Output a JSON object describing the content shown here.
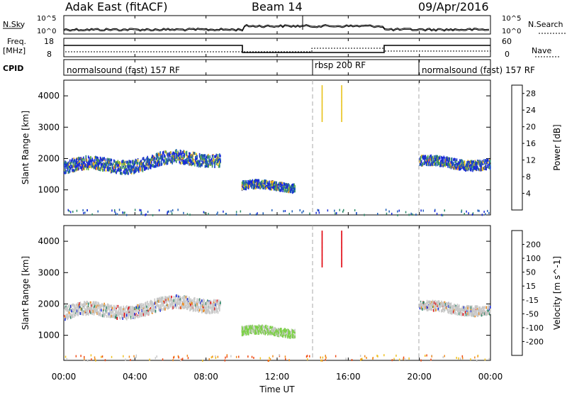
{
  "header": {
    "title": "Adak East (fitACF)",
    "beam": "Beam 14",
    "date": "09/Apr/2016"
  },
  "strip": {
    "nsky_label": "N.Sky",
    "nsearch_label": "N.Search",
    "count_ticks": [
      "10^5",
      "10^0"
    ],
    "freq_label": "Freq.",
    "freq_unit": "[MHz]",
    "freq_ticks": [
      "18",
      "8"
    ],
    "nave_label": "Nave",
    "nave_ticks": [
      "60",
      "0"
    ],
    "cpid_label": "CPID",
    "cpid_segments": [
      "normalsound (fast) 157 RF",
      "rbsp 200 RF",
      "normalsound (fast) 157 RF"
    ]
  },
  "chart_data": [
    {
      "type": "heatmap",
      "title": "",
      "xlabel": "Time UT",
      "ylabel": "Slant Range [km]",
      "xlim": [
        "00:00",
        "24:00"
      ],
      "x_ticks": [
        "00:00",
        "04:00",
        "08:00",
        "12:00",
        "16:00",
        "20:00",
        "00:00"
      ],
      "ylim": [
        200,
        4500
      ],
      "y_ticks": [
        1000,
        2000,
        3000,
        4000
      ],
      "colorbar": {
        "label": "Power [dB]",
        "ticks": [
          4,
          8,
          12,
          16,
          20,
          24,
          28
        ],
        "range": [
          0,
          30
        ],
        "colors": [
          "#1a2bd8",
          "#1f5fb8",
          "#2e8b6a",
          "#5fae4a",
          "#e8c21a",
          "#f08a1a",
          "#ee3a12",
          "#d8000a"
        ]
      },
      "scatter_regions": [
        {
          "name": "",
          "x": [
            0.0,
            8.8
          ],
          "y": [
            1500,
            2300
          ]
        },
        {
          "name": "",
          "x": [
            10.0,
            13.0
          ],
          "y": [
            900,
            1400
          ]
        },
        {
          "name": "",
          "x": [
            20.0,
            24.0
          ],
          "y": [
            1600,
            2200
          ]
        }
      ]
    },
    {
      "type": "heatmap",
      "title": "",
      "xlabel": "Time UT",
      "ylabel": "Slant Range [km]",
      "xlim": [
        "00:00",
        "24:00"
      ],
      "x_ticks": [
        "00:00",
        "04:00",
        "08:00",
        "12:00",
        "16:00",
        "20:00",
        "00:00"
      ],
      "ylim": [
        200,
        4500
      ],
      "y_ticks": [
        1000,
        2000,
        3000,
        4000
      ],
      "colorbar": {
        "label": "Velocity [m s^-1]",
        "ticks": [
          200,
          100,
          50,
          15,
          -15,
          -50,
          -100,
          -200
        ],
        "colors": [
          "#1a2bd8",
          "#2a6a9a",
          "#2e8b6a",
          "#7ed04a",
          "#c8c8c8",
          "#f0c020",
          "#f08a1a",
          "#f04a12",
          "#e0000a"
        ]
      },
      "scatter_regions": [
        {
          "name": "",
          "x": [
            0.0,
            8.8
          ],
          "y": [
            1500,
            2300
          ]
        },
        {
          "name": "",
          "x": [
            10.0,
            13.0
          ],
          "y": [
            900,
            1400
          ]
        },
        {
          "name": "",
          "x": [
            20.0,
            24.0
          ],
          "y": [
            1600,
            2200
          ]
        }
      ]
    }
  ]
}
